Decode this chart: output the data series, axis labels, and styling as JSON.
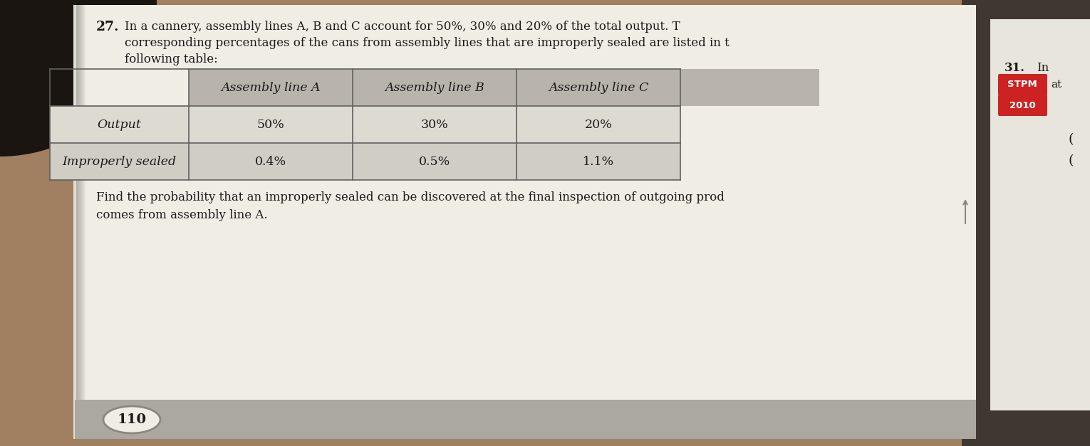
{
  "question_number": "27.",
  "question_text_line1": "In a cannery, assembly lines A, B and C account for 50%, 30% and 20% of the total output. T",
  "question_text_line2": "corresponding percentages of the cans from assembly lines that are improperly sealed are listed in t",
  "question_text_line3": "following table:",
  "table_headers": [
    "",
    "Assembly line A",
    "Assembly line B",
    "Assembly line C"
  ],
  "table_row1": [
    "Output",
    "50%",
    "30%",
    "20%"
  ],
  "table_row2": [
    "Improperly sealed",
    "0.4%",
    "0.5%",
    "1.1%"
  ],
  "question_text2_line1": "Find the probability that an improperly sealed can be discovered at the final inspection of outgoing prod",
  "question_text2_line2": "comes from assembly line A.",
  "side_number": "31.",
  "side_text": "In",
  "side_stpm": "STPM",
  "side_at": "at",
  "side_year": "2010",
  "page_number": "110",
  "bg_outer": "#8a7a6a",
  "bg_wood": "#a08060",
  "bg_dark": "#1a1510",
  "page_white": "#f0ede5",
  "page_white2": "#f5f2ea",
  "left_shadow": "#c8c0b0",
  "table_header_bg": "#b8b4ac",
  "table_row1_bg": "#dddad2",
  "table_row2_bg": "#d0cdc5",
  "table_border": "#606060",
  "text_color": "#1a1a1a",
  "gray_bar_color": "#aaa8a0",
  "stpm_box_color": "#cc2222",
  "year_box_color": "#cc2222"
}
